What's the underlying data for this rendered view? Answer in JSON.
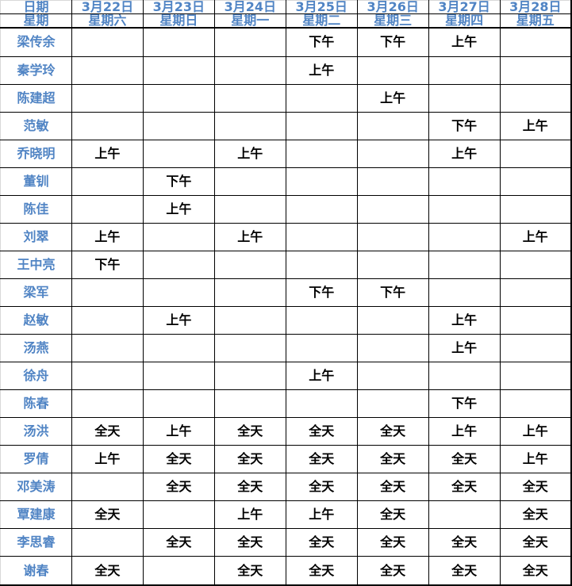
{
  "colors": {
    "accent_blue": "#5084c4",
    "value_text": "#000000",
    "grid_border": "#000000",
    "cropped_edge_gray": "#d9d9d9"
  },
  "table": {
    "date_header": {
      "label": "日期",
      "values": [
        "3月22日",
        "3月23日",
        "3月24日",
        "3月25日",
        "3月26日",
        "3月27日",
        "3月28日"
      ]
    },
    "week_header": {
      "label": "星期",
      "values": [
        "星期六",
        "星期日",
        "星期一",
        "星期二",
        "星期三",
        "星期四",
        "星期五"
      ]
    },
    "rows": [
      {
        "name": "梁传余",
        "cells": [
          "",
          "",
          "",
          "下午",
          "下午",
          "上午",
          ""
        ]
      },
      {
        "name": "秦学玲",
        "cells": [
          "",
          "",
          "",
          "上午",
          "",
          "",
          ""
        ]
      },
      {
        "name": "陈建超",
        "cells": [
          "",
          "",
          "",
          "",
          "上午",
          "",
          ""
        ]
      },
      {
        "name": "范敏",
        "cells": [
          "",
          "",
          "",
          "",
          "",
          "下午",
          "上午"
        ]
      },
      {
        "name": "乔晓明",
        "cells": [
          "上午",
          "",
          "上午",
          "",
          "",
          "上午",
          ""
        ]
      },
      {
        "name": "董钏",
        "cells": [
          "",
          "下午",
          "",
          "",
          "",
          "",
          ""
        ]
      },
      {
        "name": "陈佳",
        "cells": [
          "",
          "上午",
          "",
          "",
          "",
          "",
          ""
        ]
      },
      {
        "name": "刘翠",
        "cells": [
          "上午",
          "",
          "上午",
          "",
          "",
          "",
          "上午"
        ]
      },
      {
        "name": "王中亮",
        "cells": [
          "下午",
          "",
          "",
          "",
          "",
          "",
          ""
        ]
      },
      {
        "name": "梁军",
        "cells": [
          "",
          "",
          "",
          "下午",
          "下午",
          "",
          ""
        ]
      },
      {
        "name": "赵敏",
        "cells": [
          "",
          "上午",
          "",
          "",
          "",
          "上午",
          ""
        ]
      },
      {
        "name": "汤燕",
        "cells": [
          "",
          "",
          "",
          "",
          "",
          "上午",
          ""
        ]
      },
      {
        "name": "徐舟",
        "cells": [
          "",
          "",
          "",
          "上午",
          "",
          "",
          ""
        ]
      },
      {
        "name": "陈春",
        "cells": [
          "",
          "",
          "",
          "",
          "",
          "下午",
          ""
        ]
      },
      {
        "name": "汤洪",
        "cells": [
          "全天",
          "上午",
          "全天",
          "全天",
          "全天",
          "上午",
          "上午"
        ]
      },
      {
        "name": "罗倩",
        "cells": [
          "上午",
          "全天",
          "全天",
          "全天",
          "全天",
          "全天",
          "上午"
        ]
      },
      {
        "name": "邓美涛",
        "cells": [
          "",
          "全天",
          "全天",
          "全天",
          "全天",
          "全天",
          "全天"
        ]
      },
      {
        "name": "覃建康",
        "cells": [
          "全天",
          "",
          "上午",
          "上午",
          "全天",
          "",
          "全天"
        ]
      },
      {
        "name": "李思睿",
        "cells": [
          "",
          "全天",
          "全天",
          "全天",
          "全天",
          "全天",
          "全天"
        ]
      },
      {
        "name": "谢春",
        "cells": [
          "全天",
          "",
          "全天",
          "全天",
          "全天",
          "全天",
          "全天"
        ]
      }
    ]
  }
}
